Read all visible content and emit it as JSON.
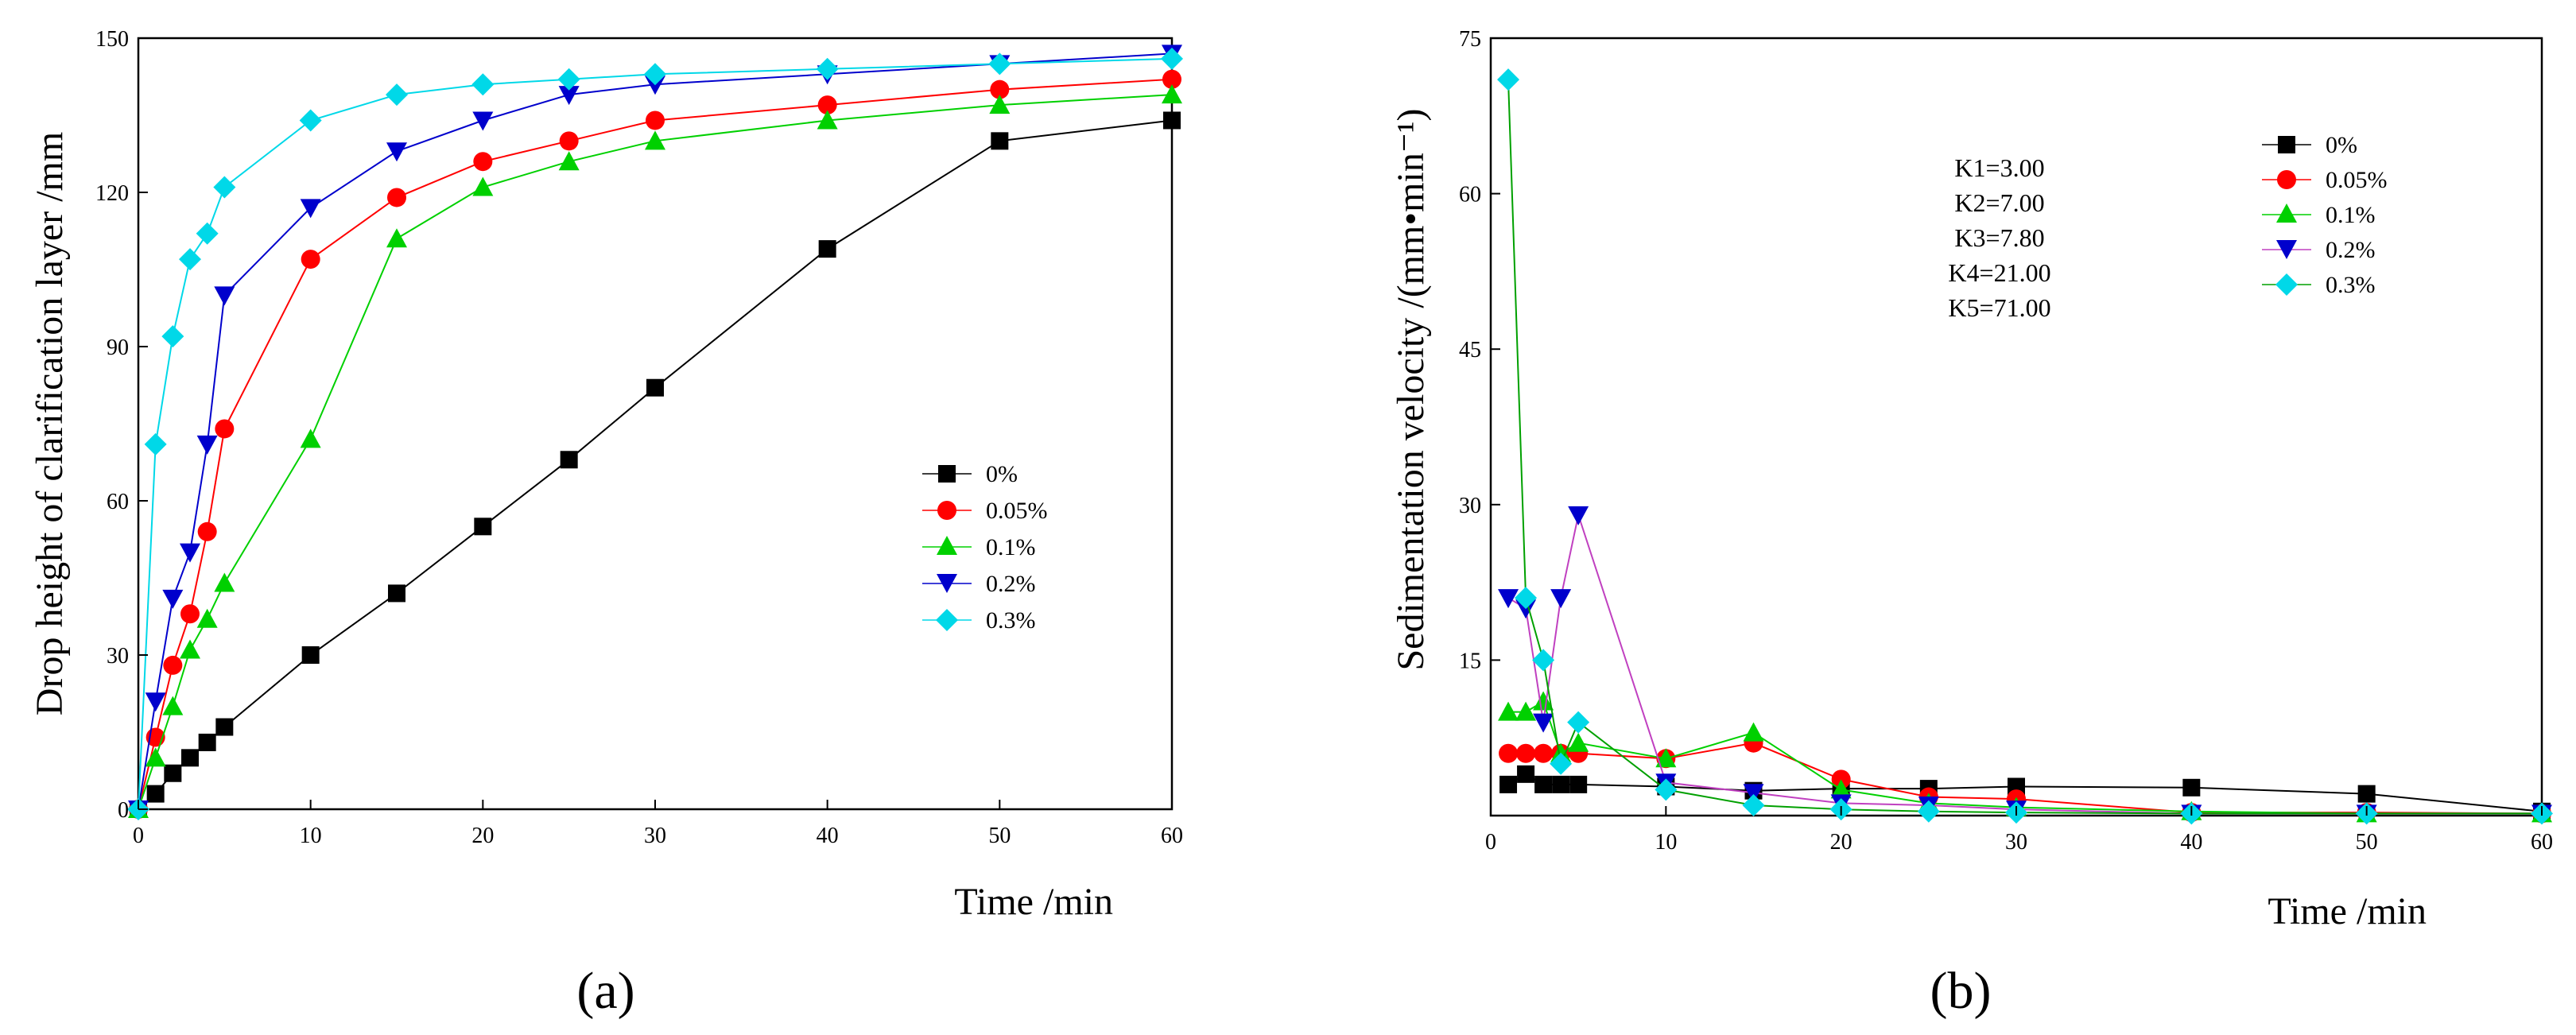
{
  "chart_data": [
    {
      "id": "a",
      "type": "line",
      "panel_label": "(a)",
      "xlabel": "Time /min",
      "ylabel": "Drop height of clarification layer /mm",
      "xlim": [
        0,
        60
      ],
      "ylim": [
        0,
        150
      ],
      "xticks": [
        0,
        10,
        20,
        30,
        40,
        50,
        60
      ],
      "yticks": [
        0,
        30,
        60,
        90,
        120,
        150
      ],
      "legend_position": "center-right",
      "series": [
        {
          "name": "0%",
          "color": "#000000",
          "marker": "square",
          "x": [
            0,
            1,
            2,
            3,
            4,
            5,
            10,
            15,
            20,
            25,
            30,
            40,
            50,
            60
          ],
          "values": [
            0,
            3,
            7,
            10,
            13,
            16,
            30,
            42,
            55,
            68,
            82,
            109,
            130,
            134
          ]
        },
        {
          "name": "0.05%",
          "color": "#ff0000",
          "marker": "circle",
          "x": [
            0,
            1,
            2,
            3,
            4,
            5,
            10,
            15,
            20,
            25,
            30,
            40,
            50,
            60
          ],
          "values": [
            0,
            14,
            28,
            38,
            54,
            74,
            107,
            119,
            126,
            130,
            134,
            137,
            140,
            142
          ]
        },
        {
          "name": "0.1%",
          "color": "#00d000",
          "marker": "triangle-up",
          "x": [
            0,
            1,
            2,
            3,
            4,
            5,
            10,
            15,
            20,
            25,
            30,
            40,
            50,
            60
          ],
          "values": [
            0,
            10,
            20,
            31,
            37,
            44,
            72,
            111,
            121,
            126,
            130,
            134,
            137,
            139
          ]
        },
        {
          "name": "0.2%",
          "color": "#0000cc",
          "marker": "triangle-down",
          "x": [
            0,
            1,
            2,
            3,
            4,
            5,
            10,
            15,
            20,
            25,
            30,
            40,
            50,
            60
          ],
          "values": [
            0,
            21,
            41,
            50,
            71,
            100,
            117,
            128,
            134,
            139,
            141,
            143,
            145,
            147
          ]
        },
        {
          "name": "0.3%",
          "color": "#00d8e8",
          "marker": "diamond",
          "x": [
            0,
            1,
            2,
            3,
            4,
            5,
            10,
            15,
            20,
            25,
            30,
            40,
            50,
            60
          ],
          "values": [
            0,
            71,
            92,
            107,
            112,
            121,
            134,
            139,
            141,
            142,
            143,
            144,
            145,
            146
          ]
        }
      ]
    },
    {
      "id": "b",
      "type": "line",
      "panel_label": "(b)",
      "xlabel": "Time /min",
      "ylabel": "Sedimentation velocity /(mm•min⁻¹)",
      "xlim": [
        0,
        60
      ],
      "ylim": [
        0,
        75
      ],
      "xticks": [
        0,
        10,
        20,
        30,
        40,
        50,
        60
      ],
      "yticks": [
        15,
        30,
        45,
        60,
        75
      ],
      "legend_position": "top-right",
      "annotations": [
        "K1=3.00",
        "K2=7.00",
        "K3=7.80",
        "K4=21.00",
        "K5=71.00"
      ],
      "series": [
        {
          "name": "0%",
          "color": "#000000",
          "marker": "square",
          "x": [
            1,
            2,
            3,
            4,
            5,
            10,
            15,
            20,
            25,
            30,
            40,
            50,
            60
          ],
          "values": [
            3,
            4,
            3,
            3,
            3,
            2.8,
            2.4,
            2.6,
            2.6,
            2.8,
            2.7,
            2.1,
            0.4
          ]
        },
        {
          "name": "0.05%",
          "color": "#ff0000",
          "marker": "circle",
          "x": [
            1,
            2,
            3,
            4,
            5,
            10,
            15,
            20,
            25,
            30,
            40,
            50,
            60
          ],
          "values": [
            6,
            6,
            6,
            6,
            6,
            5.5,
            7,
            3.5,
            1.8,
            1.6,
            0.3,
            0.3,
            0.2
          ]
        },
        {
          "name": "0.1%",
          "color": "#00d000",
          "marker": "triangle-up",
          "x": [
            1,
            2,
            3,
            4,
            5,
            10,
            15,
            20,
            25,
            30,
            40,
            50,
            60
          ],
          "values": [
            10,
            10,
            11,
            6,
            7,
            5.5,
            8,
            2.5,
            1.2,
            0.8,
            0.4,
            0.2,
            0.2
          ]
        },
        {
          "name": "0.2%",
          "color": "#0000cc",
          "marker": "triangle-down",
          "x": [
            1,
            2,
            3,
            4,
            5,
            10,
            15,
            20,
            25,
            30,
            40,
            50,
            60
          ],
          "values": [
            21,
            20,
            9,
            21,
            29,
            3.2,
            2.2,
            1.2,
            1,
            0.6,
            0.2,
            0.2,
            0.2
          ]
        },
        {
          "name": "0.3%",
          "color": "#00d8e8",
          "marker": "diamond",
          "x": [
            1,
            2,
            3,
            4,
            5,
            10,
            15,
            20,
            25,
            30,
            40,
            50,
            60
          ],
          "values": [
            71,
            21,
            15,
            5,
            9,
            2.5,
            1,
            0.6,
            0.4,
            0.3,
            0.2,
            0.2,
            0.2
          ]
        }
      ]
    }
  ]
}
